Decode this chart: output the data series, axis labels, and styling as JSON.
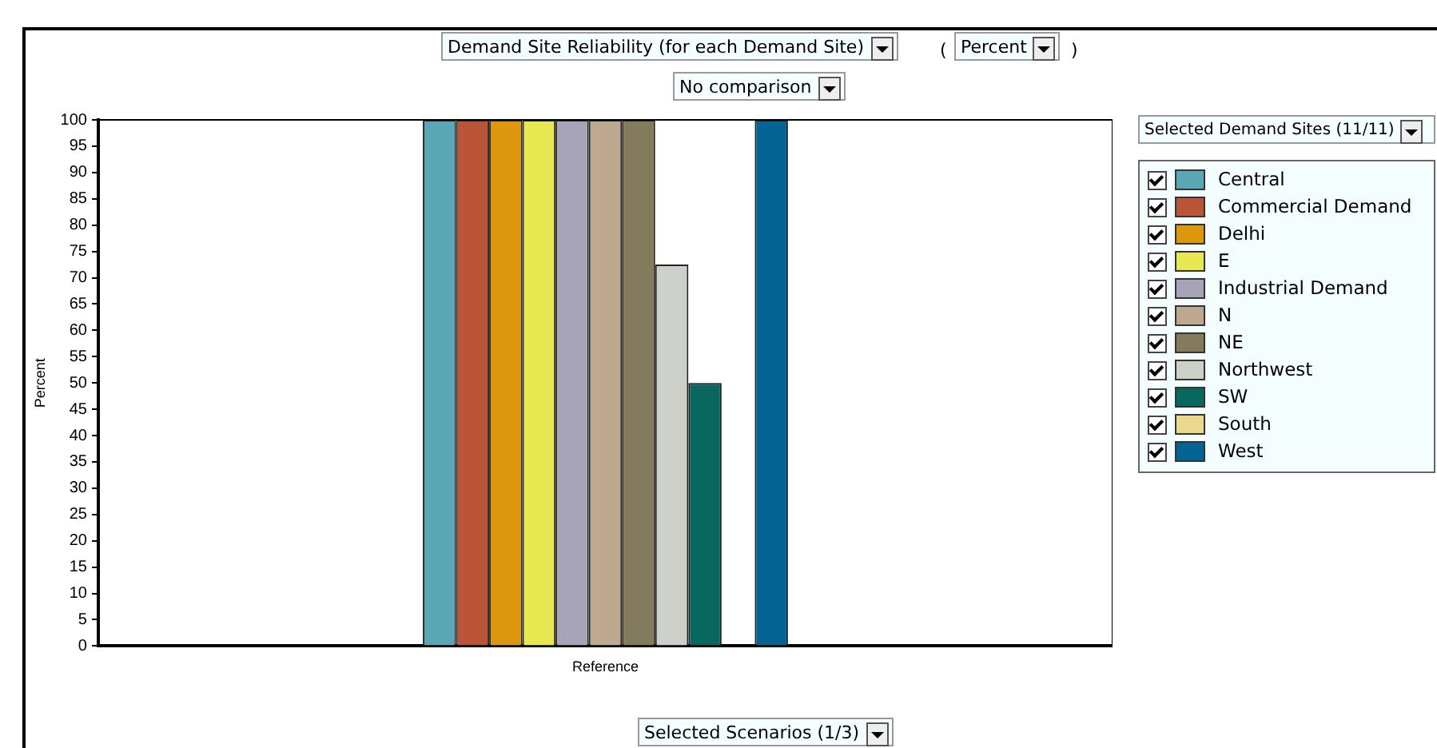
{
  "chart_data": {
    "type": "bar",
    "title": "Demand Site Reliability (for each Demand Site)",
    "subtitle": "No comparison",
    "ylabel": "Percent",
    "legend_title": "Selected Demand Sites (11/11)",
    "annotations": [
      "(",
      "Percent",
      ")",
      "Selected Scenarios (1/3)"
    ],
    "categories": [
      "Reference"
    ],
    "series": [
      {
        "name": "Central",
        "color": "#5ba6b4",
        "values": [
          100
        ]
      },
      {
        "name": "Commercial Demand",
        "color": "#bb553a",
        "values": [
          100
        ]
      },
      {
        "name": "Delhi",
        "color": "#dc970f",
        "values": [
          100
        ]
      },
      {
        "name": "E",
        "color": "#e8e852",
        "values": [
          100
        ]
      },
      {
        "name": "Industrial Demand",
        "color": "#a8a4b8",
        "values": [
          100
        ]
      },
      {
        "name": "N",
        "color": "#bfa890",
        "values": [
          100
        ]
      },
      {
        "name": "NE",
        "color": "#847a5c",
        "values": [
          100
        ]
      },
      {
        "name": "Northwest",
        "color": "#cdd0c8",
        "values": [
          72.5
        ]
      },
      {
        "name": "SW",
        "color": "#08675f",
        "values": [
          50
        ]
      },
      {
        "name": "South",
        "color": "#ecd88c",
        "values": [
          0
        ]
      },
      {
        "name": "West",
        "color": "#036494",
        "values": [
          100
        ]
      }
    ],
    "ylim": [
      0,
      100
    ],
    "yticks": [
      0,
      5,
      10,
      15,
      20,
      25,
      30,
      35,
      40,
      45,
      50,
      55,
      60,
      65,
      70,
      75,
      80,
      85,
      90,
      95,
      100
    ],
    "grid": false,
    "legend": "right"
  }
}
